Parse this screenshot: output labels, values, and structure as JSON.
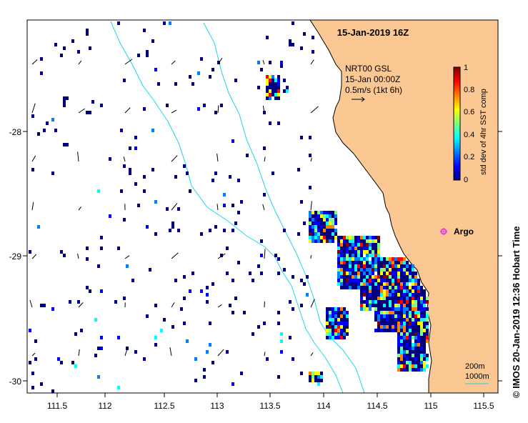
{
  "title": "15-Jan-2019 16Z",
  "legend": {
    "line1": "NRT00 GSL",
    "line2": "15-Jan 00:00Z",
    "line3": "0.5m/s (1kt 6h)"
  },
  "colorbar": {
    "label": "std dev of 4hr SST comp",
    "ticks": [
      "1",
      "0.8",
      "0.6",
      "0.4",
      "0.2",
      "0"
    ],
    "colors": [
      "#00007f",
      "#0000ff",
      "#007fff",
      "#00ffff",
      "#7fff7f",
      "#ffff00",
      "#ff7f00",
      "#ff0000",
      "#7f0000"
    ]
  },
  "argo_label": "Argo",
  "scale": {
    "a": "200m",
    "b": "1000m"
  },
  "footer": "© IMOS 20-Jan-2019 12:36 Hobart Time",
  "axes": {
    "x_ticks": [
      "111.5",
      "112",
      "112.5",
      "113",
      "113.5",
      "114",
      "114.5",
      "115",
      "115.5"
    ],
    "y_ticks": [
      "-28",
      "-29",
      "-30"
    ]
  },
  "colors": {
    "land": "#fbc793",
    "bathy": "#22d3e8",
    "argo": "#e040e0"
  }
}
